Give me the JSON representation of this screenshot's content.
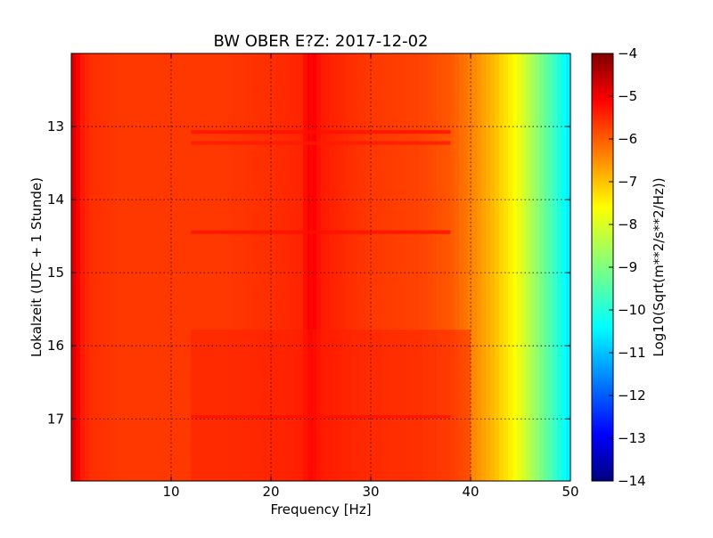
{
  "chart_data": {
    "type": "heatmap",
    "title": "BW OBER E?Z: 2017-12-02",
    "xlabel": "Frequency [Hz]",
    "ylabel": "Lokalzeit (UTC + 1 Stunde)",
    "colorbar_label": "Log10(Sqrt(m**2/s**2/Hz))",
    "xlim": [
      0,
      50
    ],
    "ylim": [
      12.0,
      17.85
    ],
    "y_inverted": true,
    "grid": true,
    "colormap": "jet",
    "clim": [
      -14,
      -4
    ],
    "x_ticks": [
      {
        "value": 10,
        "label": "10"
      },
      {
        "value": 20,
        "label": "20"
      },
      {
        "value": 30,
        "label": "30"
      },
      {
        "value": 40,
        "label": "40"
      },
      {
        "value": 50,
        "label": "50"
      }
    ],
    "y_ticks": [
      {
        "value": 13,
        "label": "13"
      },
      {
        "value": 14,
        "label": "14"
      },
      {
        "value": 15,
        "label": "15"
      },
      {
        "value": 16,
        "label": "16"
      },
      {
        "value": 17,
        "label": "17"
      }
    ],
    "colorbar_ticks": [
      {
        "value": -4,
        "label": "−4"
      },
      {
        "value": -5,
        "label": "−5"
      },
      {
        "value": -6,
        "label": "−6"
      },
      {
        "value": -7,
        "label": "−7"
      },
      {
        "value": -8,
        "label": "−8"
      },
      {
        "value": -9,
        "label": "−9"
      },
      {
        "value": -10,
        "label": "−10"
      },
      {
        "value": -11,
        "label": "−11"
      },
      {
        "value": -12,
        "label": "−12"
      },
      {
        "value": -13,
        "label": "−13"
      },
      {
        "value": -14,
        "label": "−14"
      }
    ],
    "frequency_profile": {
      "frequency": [
        0,
        0.5,
        1,
        2,
        5,
        10,
        15,
        20,
        23,
        24,
        25,
        28,
        30,
        35,
        38,
        40,
        42,
        44,
        45,
        46,
        47,
        48,
        49,
        50
      ],
      "value": [
        -4.8,
        -5.1,
        -5.5,
        -5.7,
        -5.8,
        -5.8,
        -5.8,
        -5.7,
        -5.6,
        -5.1,
        -5.5,
        -5.7,
        -5.8,
        -5.9,
        -6.1,
        -6.5,
        -7.0,
        -7.6,
        -8.0,
        -8.5,
        -9.0,
        -9.5,
        -10.0,
        -10.5
      ]
    },
    "features": [
      {
        "kind": "vertical-line",
        "frequency": 24.0,
        "value": -5.0
      },
      {
        "kind": "horizontal-band",
        "time_start": 13.05,
        "time_end": 13.1,
        "value": -5.4
      },
      {
        "kind": "horizontal-band",
        "time_start": 13.2,
        "time_end": 13.25,
        "value": -5.5
      },
      {
        "kind": "horizontal-band",
        "time_start": 14.42,
        "time_end": 14.47,
        "value": -5.4
      },
      {
        "kind": "horizontal-band",
        "time_start": 16.95,
        "time_end": 16.99,
        "value": -5.4
      },
      {
        "kind": "block",
        "time_start": 15.78,
        "time_end": 17.85,
        "freq_start": 12,
        "freq_end": 40,
        "value": -5.5
      }
    ]
  }
}
